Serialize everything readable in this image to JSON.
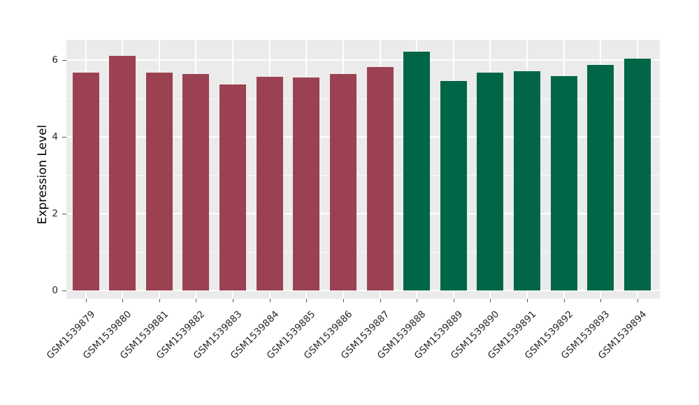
{
  "chart_data": {
    "type": "bar",
    "title": "",
    "xlabel": "",
    "ylabel": "Expression Level",
    "categories": [
      "GSM1539879",
      "GSM1539880",
      "GSM1539881",
      "GSM1539882",
      "GSM1539883",
      "GSM1539884",
      "GSM1539885",
      "GSM1539886",
      "GSM1539887",
      "GSM1539888",
      "GSM1539889",
      "GSM1539890",
      "GSM1539891",
      "GSM1539892",
      "GSM1539893",
      "GSM1539894"
    ],
    "values": [
      5.68,
      6.11,
      5.68,
      5.64,
      5.37,
      5.57,
      5.55,
      5.64,
      5.82,
      6.22,
      5.45,
      5.67,
      5.72,
      5.59,
      5.88,
      6.04
    ],
    "groups": [
      "group1",
      "group1",
      "group1",
      "group1",
      "group1",
      "group1",
      "group1",
      "group1",
      "group1",
      "group2",
      "group2",
      "group2",
      "group2",
      "group2",
      "group2",
      "group2"
    ],
    "palette": {
      "group1": "#9C4151",
      "group2": "#006647"
    },
    "y_ticks": [
      0,
      2,
      4,
      6
    ],
    "y_minor_gridlines": [
      1,
      3,
      5
    ],
    "ylim": [
      0,
      6.53
    ],
    "grid": "on",
    "legend_position": "none",
    "panel_background": "#EBEBEB",
    "gridline_color": "#FFFFFF"
  }
}
